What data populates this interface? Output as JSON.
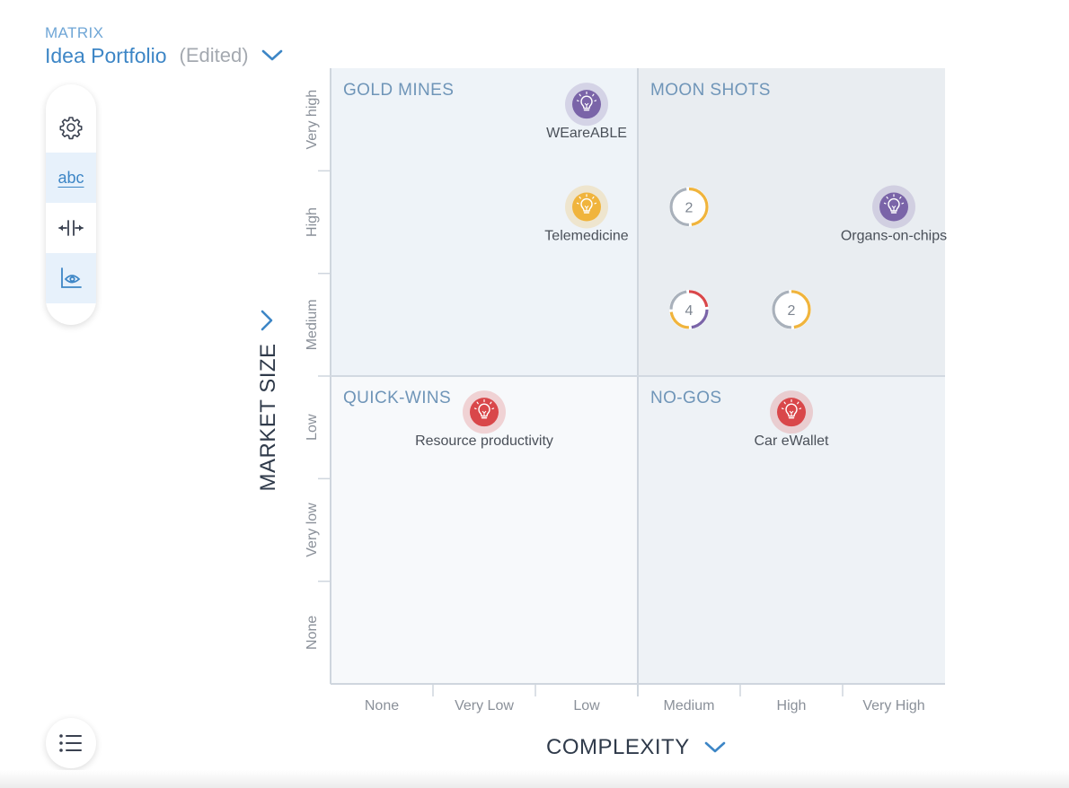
{
  "header": {
    "crumb": "MATRIX",
    "title": "Idea Portfolio",
    "edited": "(Edited)"
  },
  "toolbar": {
    "items": [
      {
        "name": "settings",
        "icon": "gear-icon",
        "active": false
      },
      {
        "name": "labels",
        "label": "abc",
        "icon": "text-labels-icon",
        "active": true
      },
      {
        "name": "spacing",
        "icon": "distribute-horizontal-icon",
        "active": false
      },
      {
        "name": "view",
        "icon": "chart-eye-icon",
        "active": true
      }
    ],
    "list_icon": "list-icon"
  },
  "colors": {
    "purple": "#7a64a8",
    "yellow": "#f0b43c",
    "red": "#d9474a",
    "accent": "#3d86c6"
  },
  "chart_data": {
    "type": "scatter",
    "xlabel": "COMPLEXITY",
    "ylabel": "MARKET SIZE",
    "x_categories": [
      "None",
      "Very Low",
      "Low",
      "Medium",
      "High",
      "Very High"
    ],
    "y_categories": [
      "None",
      "Very low",
      "Low",
      "Medium",
      "High",
      "Very high"
    ],
    "quadrants": [
      {
        "name": "GOLD MINES",
        "position": "top-left"
      },
      {
        "name": "MOON SHOTS",
        "position": "top-right"
      },
      {
        "name": "QUICK-WINS",
        "position": "bottom-left"
      },
      {
        "name": "NO-GOS",
        "position": "bottom-right"
      }
    ],
    "ideas": [
      {
        "label": "WEareABLE",
        "x": "Low",
        "y": "Very high",
        "color": "purple"
      },
      {
        "label": "Telemedicine",
        "x": "Low",
        "y": "High",
        "color": "yellow"
      },
      {
        "label": "Organs-on-chips",
        "x": "Very High",
        "y": "High",
        "color": "purple"
      },
      {
        "label": "Resource productivity",
        "x": "Very Low",
        "y": "Low",
        "color": "red"
      },
      {
        "label": "Car eWallet",
        "x": "High",
        "y": "Low",
        "color": "red"
      }
    ],
    "clusters": [
      {
        "count": "2",
        "x": "Medium",
        "y": "High",
        "colors": [
          "yellow",
          "gray"
        ]
      },
      {
        "count": "4",
        "x": "Medium",
        "y": "Medium",
        "colors": [
          "red",
          "purple",
          "yellow",
          "gray"
        ]
      },
      {
        "count": "2",
        "x": "High",
        "y": "Medium",
        "colors": [
          "yellow",
          "gray"
        ]
      }
    ]
  }
}
